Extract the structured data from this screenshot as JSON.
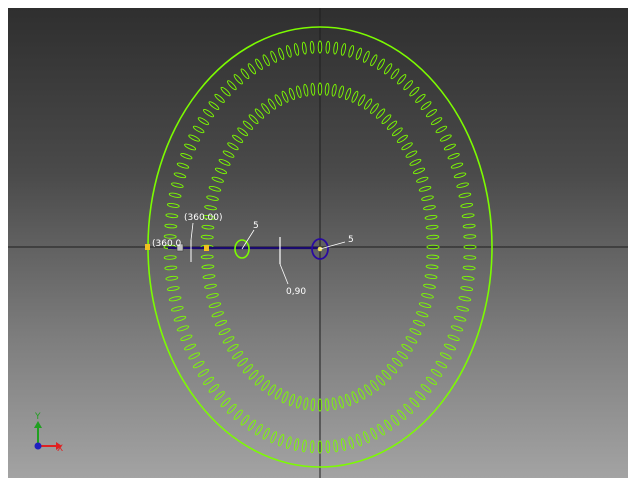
{
  "viewport": {
    "background_top": "#2f2f2f",
    "background_bottom": "#a3a3a3"
  },
  "sketch": {
    "outer_circle_color": "#7CFC00",
    "slot_color": "#7CFC00",
    "outer_slot_count": 120,
    "inner_slot_count": 100,
    "line_color": "#1a0a6e",
    "crosshair_color": "#1e1e1e"
  },
  "dimensions": {
    "angle_label": "(360.00)",
    "angle_label_short": "(360.0",
    "length_label": "0,90",
    "radius_label_left": "5",
    "radius_label_center": "5"
  },
  "triad": {
    "x_label": "X",
    "y_label": "Y",
    "x_color": "#e02020",
    "y_color": "#20a020",
    "origin_color": "#2020c0"
  }
}
